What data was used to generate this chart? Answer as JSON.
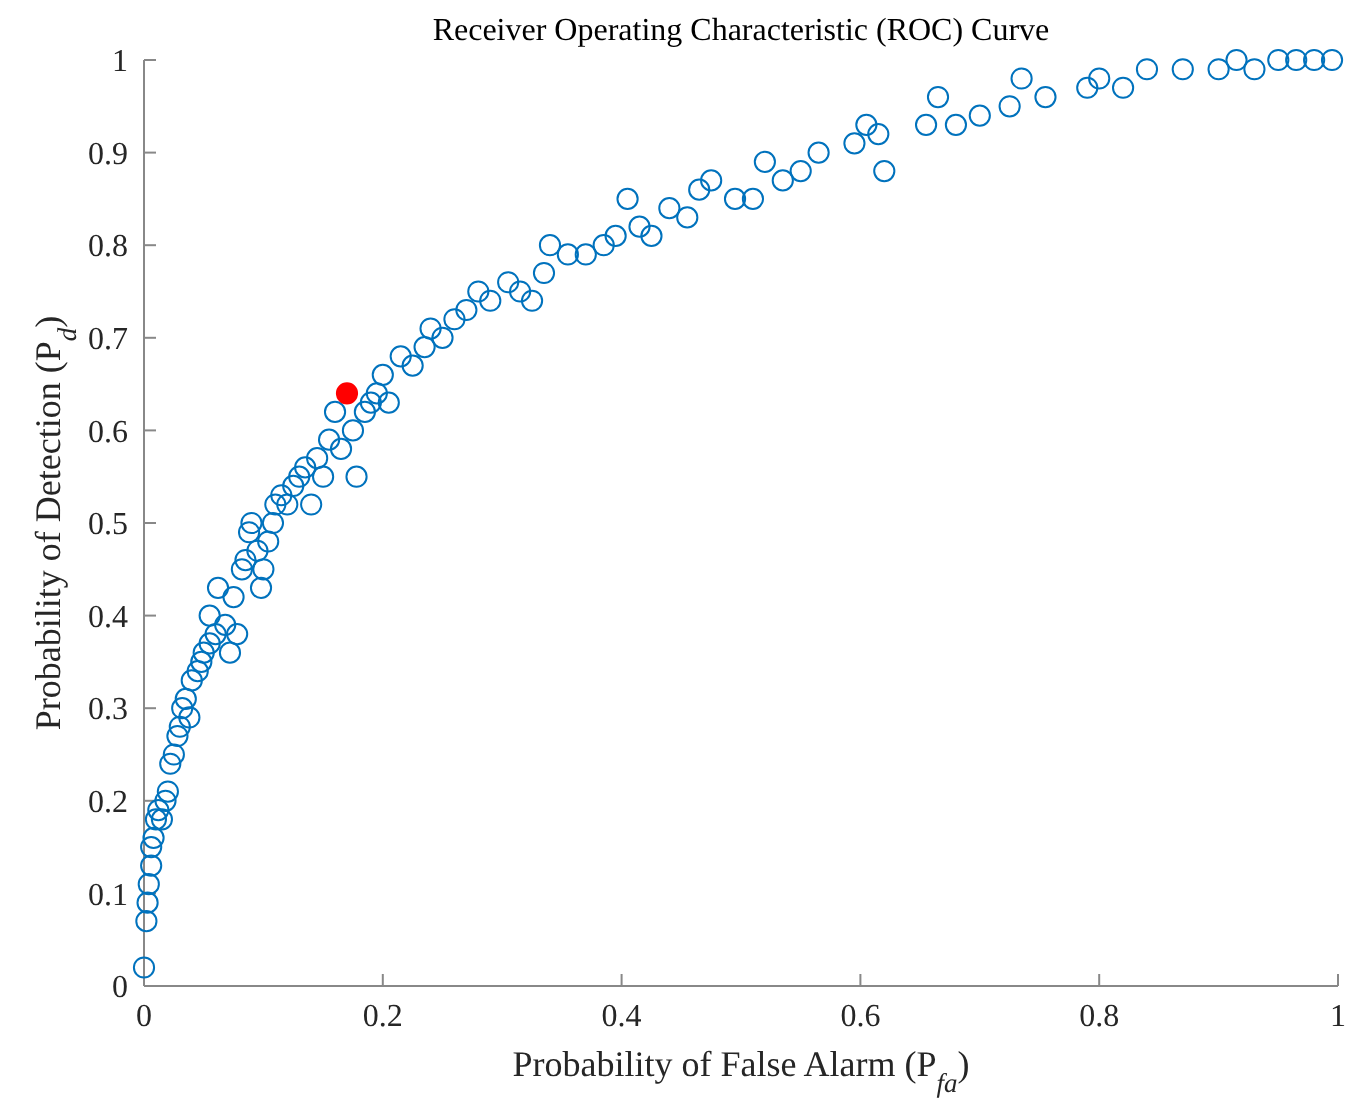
{
  "chart_data": {
    "type": "scatter",
    "title": "Receiver Operating Characteristic (ROC) Curve",
    "xlabel": "Probability of False Alarm (P$_{fa}$)",
    "ylabel": "Probability of Detection (P$_{d}$)",
    "xlim": [
      0,
      1
    ],
    "ylim": [
      0,
      1
    ],
    "xticks": [
      0,
      0.2,
      0.4,
      0.6,
      0.8,
      1
    ],
    "yticks": [
      0,
      0.1,
      0.2,
      0.3,
      0.4,
      0.5,
      0.6,
      0.7,
      0.8,
      0.9,
      1
    ],
    "grid": false,
    "marker": "circle",
    "series": [
      {
        "color": "#0072bd",
        "x": [
          0.0,
          0.002,
          0.003,
          0.004,
          0.006,
          0.006,
          0.008,
          0.01,
          0.012,
          0.015,
          0.018,
          0.02,
          0.022,
          0.025,
          0.028,
          0.03,
          0.032,
          0.035,
          0.038,
          0.04,
          0.045,
          0.048,
          0.05,
          0.055,
          0.055,
          0.06,
          0.062,
          0.068,
          0.072,
          0.075,
          0.078,
          0.082,
          0.085,
          0.088,
          0.09,
          0.095,
          0.098,
          0.1,
          0.104,
          0.108,
          0.11,
          0.115,
          0.12,
          0.125,
          0.13,
          0.135,
          0.14,
          0.145,
          0.15,
          0.155,
          0.16,
          0.165,
          0.175,
          0.178,
          0.185,
          0.19,
          0.195,
          0.2,
          0.205,
          0.215,
          0.225,
          0.235,
          0.24,
          0.25,
          0.26,
          0.27,
          0.28,
          0.29,
          0.305,
          0.315,
          0.325,
          0.335,
          0.34,
          0.355,
          0.37,
          0.385,
          0.395,
          0.405,
          0.415,
          0.425,
          0.44,
          0.455,
          0.465,
          0.475,
          0.495,
          0.51,
          0.52,
          0.535,
          0.55,
          0.565,
          0.595,
          0.605,
          0.615,
          0.62,
          0.655,
          0.665,
          0.68,
          0.7,
          0.725,
          0.735,
          0.755,
          0.79,
          0.8,
          0.82,
          0.84,
          0.87,
          0.9,
          0.915,
          0.93,
          0.95,
          0.965,
          0.98,
          0.995
        ],
        "values": [
          0.02,
          0.07,
          0.09,
          0.11,
          0.13,
          0.15,
          0.16,
          0.18,
          0.19,
          0.18,
          0.2,
          0.21,
          0.24,
          0.25,
          0.27,
          0.28,
          0.3,
          0.31,
          0.29,
          0.33,
          0.34,
          0.35,
          0.36,
          0.37,
          0.4,
          0.38,
          0.43,
          0.39,
          0.36,
          0.42,
          0.38,
          0.45,
          0.46,
          0.49,
          0.5,
          0.47,
          0.43,
          0.45,
          0.48,
          0.5,
          0.52,
          0.53,
          0.52,
          0.54,
          0.55,
          0.56,
          0.52,
          0.57,
          0.55,
          0.59,
          0.62,
          0.58,
          0.6,
          0.55,
          0.62,
          0.63,
          0.64,
          0.66,
          0.63,
          0.68,
          0.67,
          0.69,
          0.71,
          0.7,
          0.72,
          0.73,
          0.75,
          0.74,
          0.76,
          0.75,
          0.74,
          0.77,
          0.8,
          0.79,
          0.79,
          0.8,
          0.81,
          0.85,
          0.82,
          0.81,
          0.84,
          0.83,
          0.86,
          0.87,
          0.85,
          0.85,
          0.89,
          0.87,
          0.88,
          0.9,
          0.91,
          0.93,
          0.92,
          0.88,
          0.93,
          0.96,
          0.93,
          0.94,
          0.95,
          0.98,
          0.96,
          0.97,
          0.98,
          0.97,
          0.99,
          0.99,
          0.99,
          1.0,
          0.99,
          1.0,
          1.0,
          1.0,
          1.0
        ]
      },
      {
        "color": "#ff0000",
        "x": [
          0.17
        ],
        "values": [
          0.64
        ]
      }
    ]
  }
}
